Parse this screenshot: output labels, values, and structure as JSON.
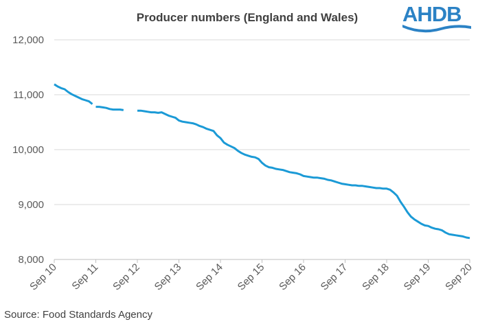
{
  "logo": {
    "text": "AHDB",
    "colors": {
      "brand": "#2b82c5",
      "wave": "#2b82c5"
    }
  },
  "source": "Source: Food Standards Agency",
  "chart_data": {
    "type": "line",
    "title": "Producer numbers (England and Wales)",
    "xlabel": "",
    "ylabel": "",
    "ylim": [
      8000,
      12000
    ],
    "yticks": [
      "8,000",
      "9,000",
      "10,000",
      "11,000",
      "12,000"
    ],
    "ytick_values": [
      8000,
      9000,
      10000,
      11000,
      12000
    ],
    "xticks": [
      "Sep 10",
      "Sep 11",
      "Sep 12",
      "Sep 13",
      "Sep 14",
      "Sep 15",
      "Sep 16",
      "Sep 17",
      "Sep 18",
      "Sep 19",
      "Sep 20"
    ],
    "xlim": [
      "2010-09",
      "2020-09"
    ],
    "grid": "horizontal",
    "line_color": "#1b9ad6",
    "series": [
      {
        "segments": [
          [
            [
              "2010-09",
              11190
            ],
            [
              "2010-10",
              11150
            ],
            [
              "2010-11",
              11120
            ],
            [
              "2010-12",
              11100
            ],
            [
              "2011-01",
              11050
            ],
            [
              "2011-02",
              11010
            ],
            [
              "2011-03",
              10980
            ],
            [
              "2011-04",
              10950
            ],
            [
              "2011-05",
              10920
            ],
            [
              "2011-06",
              10900
            ],
            [
              "2011-07",
              10880
            ],
            [
              "2011-08",
              10830
            ]
          ],
          [
            [
              "2011-09",
              10780
            ],
            [
              "2011-10",
              10780
            ],
            [
              "2011-11",
              10770
            ],
            [
              "2011-12",
              10760
            ],
            [
              "2012-01",
              10740
            ],
            [
              "2012-02",
              10730
            ],
            [
              "2012-03",
              10730
            ],
            [
              "2012-04",
              10730
            ],
            [
              "2012-05",
              10720
            ]
          ],
          [
            [
              "2012-09",
              10710
            ],
            [
              "2012-10",
              10710
            ],
            [
              "2012-11",
              10700
            ],
            [
              "2012-12",
              10690
            ],
            [
              "2013-01",
              10680
            ],
            [
              "2013-02",
              10680
            ],
            [
              "2013-03",
              10670
            ],
            [
              "2013-04",
              10680
            ],
            [
              "2013-05",
              10650
            ],
            [
              "2013-06",
              10620
            ],
            [
              "2013-07",
              10600
            ],
            [
              "2013-08",
              10580
            ],
            [
              "2013-09",
              10530
            ],
            [
              "2013-10",
              10510
            ],
            [
              "2013-11",
              10500
            ],
            [
              "2013-12",
              10490
            ],
            [
              "2014-01",
              10480
            ],
            [
              "2014-02",
              10460
            ],
            [
              "2014-03",
              10430
            ],
            [
              "2014-04",
              10410
            ],
            [
              "2014-05",
              10380
            ],
            [
              "2014-06",
              10360
            ],
            [
              "2014-07",
              10340
            ],
            [
              "2014-08",
              10260
            ],
            [
              "2014-09",
              10210
            ],
            [
              "2014-10",
              10130
            ],
            [
              "2014-11",
              10090
            ],
            [
              "2014-12",
              10060
            ],
            [
              "2015-01",
              10030
            ],
            [
              "2015-02",
              9980
            ],
            [
              "2015-03",
              9940
            ],
            [
              "2015-04",
              9910
            ],
            [
              "2015-05",
              9890
            ],
            [
              "2015-06",
              9870
            ],
            [
              "2015-07",
              9860
            ],
            [
              "2015-08",
              9830
            ],
            [
              "2015-09",
              9760
            ],
            [
              "2015-10",
              9710
            ],
            [
              "2015-11",
              9680
            ],
            [
              "2015-12",
              9670
            ],
            [
              "2016-01",
              9650
            ],
            [
              "2016-02",
              9640
            ],
            [
              "2016-03",
              9630
            ],
            [
              "2016-04",
              9610
            ],
            [
              "2016-05",
              9590
            ],
            [
              "2016-06",
              9580
            ],
            [
              "2016-07",
              9570
            ],
            [
              "2016-08",
              9550
            ],
            [
              "2016-09",
              9520
            ],
            [
              "2016-10",
              9510
            ],
            [
              "2016-11",
              9500
            ],
            [
              "2016-12",
              9490
            ],
            [
              "2017-01",
              9490
            ],
            [
              "2017-02",
              9480
            ],
            [
              "2017-03",
              9470
            ],
            [
              "2017-04",
              9450
            ],
            [
              "2017-05",
              9440
            ],
            [
              "2017-06",
              9420
            ],
            [
              "2017-07",
              9400
            ],
            [
              "2017-08",
              9380
            ],
            [
              "2017-09",
              9370
            ],
            [
              "2017-10",
              9360
            ],
            [
              "2017-11",
              9350
            ],
            [
              "2017-12",
              9350
            ],
            [
              "2018-01",
              9340
            ],
            [
              "2018-02",
              9340
            ],
            [
              "2018-03",
              9330
            ],
            [
              "2018-04",
              9320
            ],
            [
              "2018-05",
              9310
            ],
            [
              "2018-06",
              9300
            ],
            [
              "2018-07",
              9300
            ],
            [
              "2018-08",
              9290
            ],
            [
              "2018-09",
              9290
            ],
            [
              "2018-10",
              9270
            ],
            [
              "2018-11",
              9220
            ],
            [
              "2018-12",
              9160
            ],
            [
              "2019-01",
              9050
            ],
            [
              "2019-02",
              8960
            ],
            [
              "2019-03",
              8860
            ],
            [
              "2019-04",
              8780
            ],
            [
              "2019-05",
              8730
            ],
            [
              "2019-06",
              8690
            ],
            [
              "2019-07",
              8650
            ],
            [
              "2019-08",
              8620
            ],
            [
              "2019-09",
              8610
            ],
            [
              "2019-10",
              8580
            ],
            [
              "2019-11",
              8560
            ],
            [
              "2019-12",
              8550
            ],
            [
              "2020-01",
              8530
            ],
            [
              "2020-02",
              8490
            ],
            [
              "2020-03",
              8460
            ],
            [
              "2020-04",
              8450
            ],
            [
              "2020-05",
              8440
            ],
            [
              "2020-06",
              8430
            ],
            [
              "2020-07",
              8420
            ],
            [
              "2020-08",
              8400
            ],
            [
              "2020-09",
              8390
            ]
          ]
        ]
      }
    ]
  }
}
